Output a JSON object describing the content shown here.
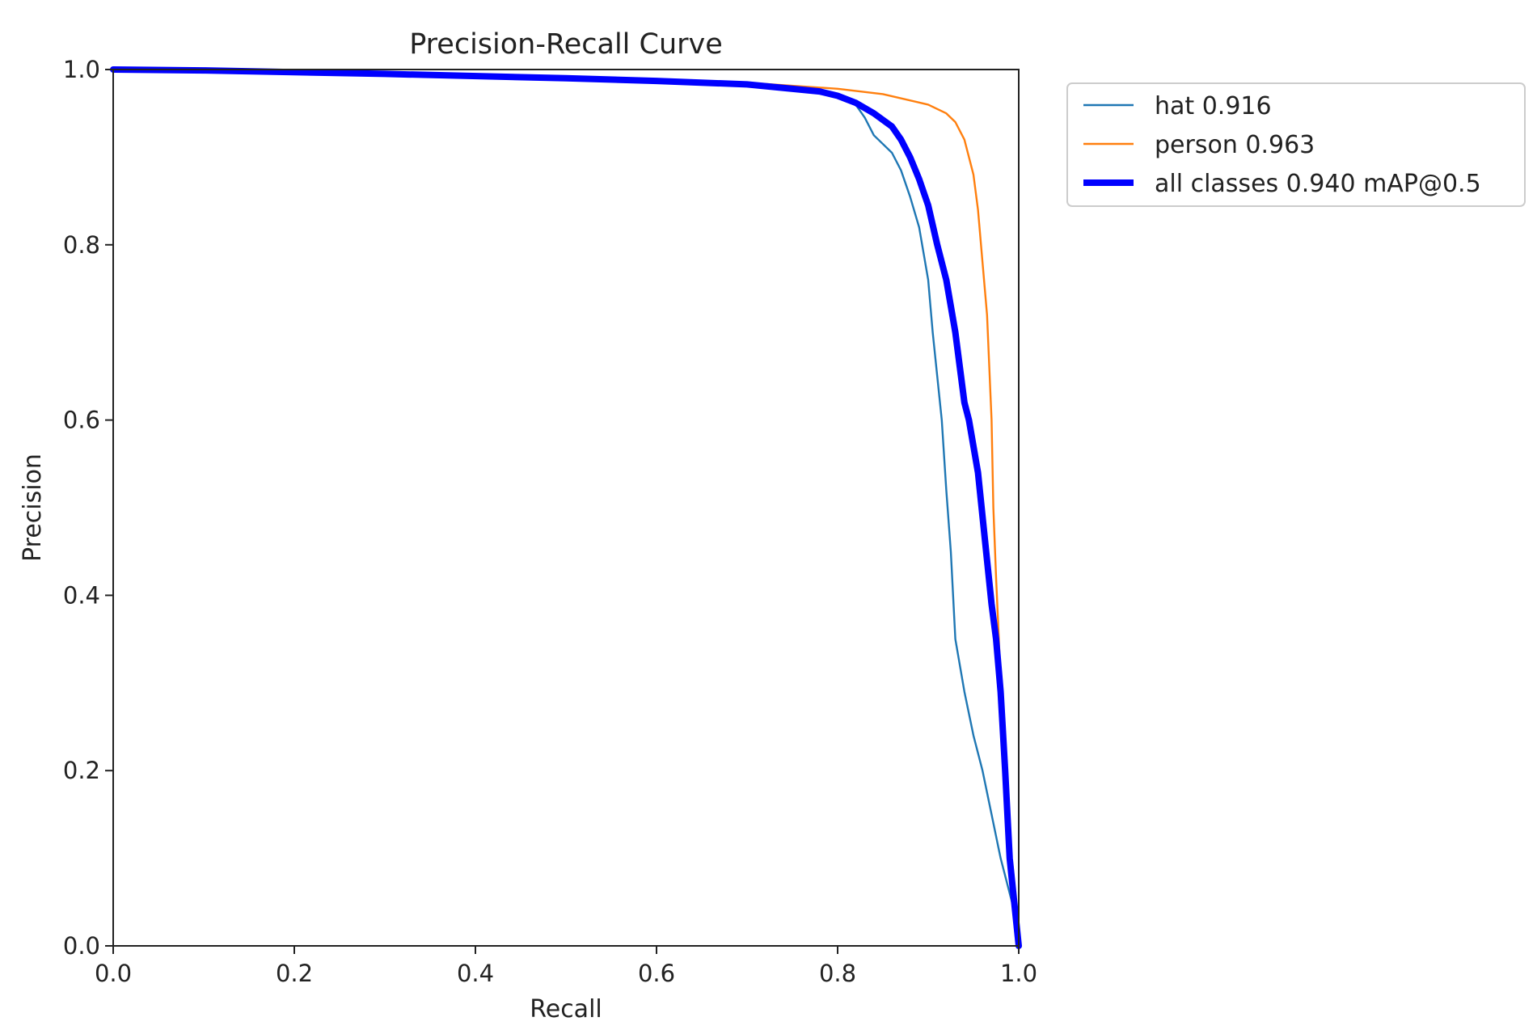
{
  "chart_data": {
    "type": "line",
    "title": "Precision-Recall Curve",
    "xlabel": "Recall",
    "ylabel": "Precision",
    "xlim": [
      0,
      1
    ],
    "ylim": [
      0,
      1
    ],
    "xticks": [
      "0.0",
      "0.2",
      "0.4",
      "0.6",
      "0.8",
      "1.0"
    ],
    "yticks": [
      "0.0",
      "0.2",
      "0.4",
      "0.6",
      "0.8",
      "1.0"
    ],
    "grid": false,
    "legend_position": "outside-top-right",
    "series": [
      {
        "name": "hat 0.916",
        "color": "#1f77b4",
        "line": "thin",
        "x": [
          0,
          0.1,
          0.3,
          0.5,
          0.6,
          0.7,
          0.78,
          0.8,
          0.82,
          0.83,
          0.84,
          0.86,
          0.87,
          0.88,
          0.89,
          0.9,
          0.905,
          0.91,
          0.915,
          0.92,
          0.925,
          0.93,
          0.935,
          0.94,
          0.95,
          0.96,
          0.97,
          0.98,
          0.99,
          1.0
        ],
        "y": [
          1.0,
          0.999,
          0.995,
          0.99,
          0.987,
          0.982,
          0.975,
          0.97,
          0.96,
          0.945,
          0.925,
          0.905,
          0.885,
          0.855,
          0.82,
          0.76,
          0.7,
          0.65,
          0.6,
          0.52,
          0.45,
          0.35,
          0.32,
          0.29,
          0.24,
          0.2,
          0.15,
          0.1,
          0.06,
          0.02
        ]
      },
      {
        "name": "person 0.963",
        "color": "#ff7f0e",
        "line": "thin",
        "x": [
          0,
          0.1,
          0.3,
          0.5,
          0.6,
          0.7,
          0.8,
          0.85,
          0.9,
          0.92,
          0.93,
          0.94,
          0.95,
          0.955,
          0.96,
          0.965,
          0.97,
          0.972,
          0.975,
          0.978,
          0.98,
          0.985,
          0.99,
          1.0
        ],
        "y": [
          1.0,
          0.999,
          0.995,
          0.99,
          0.988,
          0.985,
          0.978,
          0.972,
          0.96,
          0.95,
          0.94,
          0.92,
          0.88,
          0.84,
          0.78,
          0.72,
          0.6,
          0.5,
          0.42,
          0.35,
          0.3,
          0.2,
          0.1,
          0.0
        ]
      },
      {
        "name": "all classes 0.940 mAP@0.5",
        "color": "#0000ff",
        "line": "thick",
        "x": [
          0,
          0.1,
          0.3,
          0.5,
          0.6,
          0.7,
          0.78,
          0.8,
          0.82,
          0.84,
          0.86,
          0.87,
          0.88,
          0.89,
          0.9,
          0.91,
          0.92,
          0.925,
          0.93,
          0.935,
          0.94,
          0.945,
          0.95,
          0.955,
          0.96,
          0.965,
          0.97,
          0.975,
          0.98,
          0.985,
          0.99,
          1.0
        ],
        "y": [
          1.0,
          0.999,
          0.995,
          0.99,
          0.987,
          0.983,
          0.975,
          0.97,
          0.962,
          0.95,
          0.935,
          0.92,
          0.9,
          0.875,
          0.845,
          0.8,
          0.76,
          0.73,
          0.7,
          0.66,
          0.62,
          0.6,
          0.57,
          0.54,
          0.49,
          0.44,
          0.39,
          0.35,
          0.29,
          0.2,
          0.1,
          0.0
        ]
      }
    ]
  }
}
